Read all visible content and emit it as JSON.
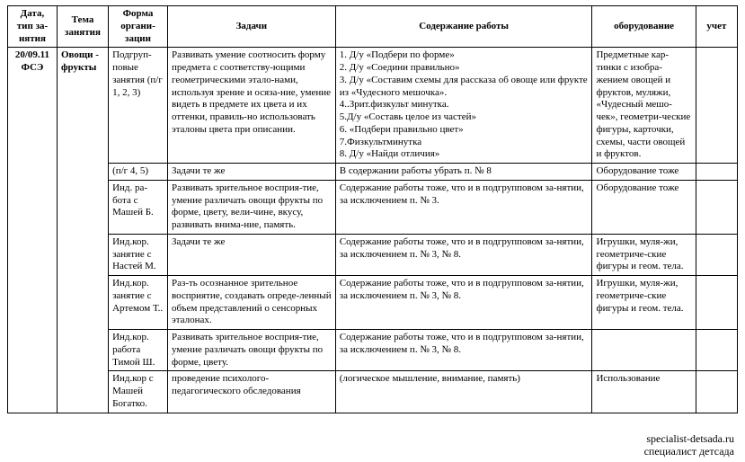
{
  "headers": {
    "date": "Дата, тип за-нятия",
    "topic": "Тема занятия",
    "form": "Форма органи-зации",
    "tasks": "Задачи",
    "content": "Содержание работы",
    "equipment": "оборудование",
    "record": "учет"
  },
  "dateCell": "20/09.11 ФСЭ",
  "topicCell": "Овощи - фрукты",
  "rows": [
    {
      "form": "Подгруп-повые занятия (п/г 1, 2, 3)",
      "tasks": "Развивать умение соотносить форму предмета с соответству-ющими геометрическими этало-нами, используя зрение и осяза-ние, умение видеть в предмете их цвета и их оттенки, правиль-но использовать эталоны цвета при описании.",
      "content": "1. Д/у «Подбери по форме»\n2. Д/у «Соедини правильно»\n3. Д/у «Составим схемы для  рассказа об овоще или фрукте из «Чудесного мешочка».\n4..Зрит.физкульт минутка.\n5.Д/у «Составь целое из  частей»\n6. «Подбери правильно цвет»\n7.Физкультминутка\n8. Д/у «Найди отличия»",
      "equipment": "Предметные кар-тинки с изобра-жением овощей и фруктов, муляжи, «Чудесный мешо-чек», геометри-ческие фигуры, карточки, схемы, части овощей и фруктов.",
      "record": ""
    },
    {
      "form": "(п/г 4, 5)",
      "tasks": "Задачи те же",
      "content": "В содержании работы убрать п. № 8",
      "equipment": "Оборудование тоже",
      "record": ""
    },
    {
      "form": "Инд. ра-бота с Машей Б.",
      "tasks": "Развивать зрительное восприя-тие, умение различать овощи фрукты по форме, цвету, вели-чине, вкусу, развивать внима-ние, память.",
      "content": "Содержание работы тоже, что и в подгрупповом за-нятии, за исключением п. № 3.",
      "equipment": "Оборудование тоже",
      "record": ""
    },
    {
      "form": "Инд.кор. занятие с Настей М.",
      "tasks": "Задачи те же",
      "content": "Содержание работы тоже, что и в подгрупповом за-нятии, за исключением п. № 3, № 8.",
      "equipment": "Игрушки, муля-жи, геометриче-ские фигуры и геом. тела.",
      "record": ""
    },
    {
      "form": "Инд.кор. занятие с Артемом Т..",
      "tasks": "Раз-ть осознанное зрительное восприятие, создавать опреде-ленный объем представлений о сенсорных эталонах.",
      "content": "Содержание работы тоже, что и в подгрупповом за-нятии, за исключением п. № 3, № 8.",
      "equipment": "Игрушки, муля-жи, геометриче-ские фигуры и геом. тела.",
      "record": ""
    },
    {
      "form": "Инд.кор. работа Тимой Ш.",
      "tasks": "Развивать зрительное восприя-тие, умение различать овощи фрукты по форме, цвету.",
      "content": "Содержание работы тоже, что и в подгрупповом за-нятии, за исключением п. № 3, № 8.",
      "equipment": "",
      "record": ""
    },
    {
      "form": "Инд.кор с Машей Богатко.",
      "tasks": "проведение психолого-педагогического обследования",
      "content": " (логическое мышление, внимание, память)",
      "equipment": "Использование",
      "record": ""
    }
  ],
  "watermark": {
    "line1": "specialist-detsada.ru",
    "line2": "специалист детсада"
  }
}
